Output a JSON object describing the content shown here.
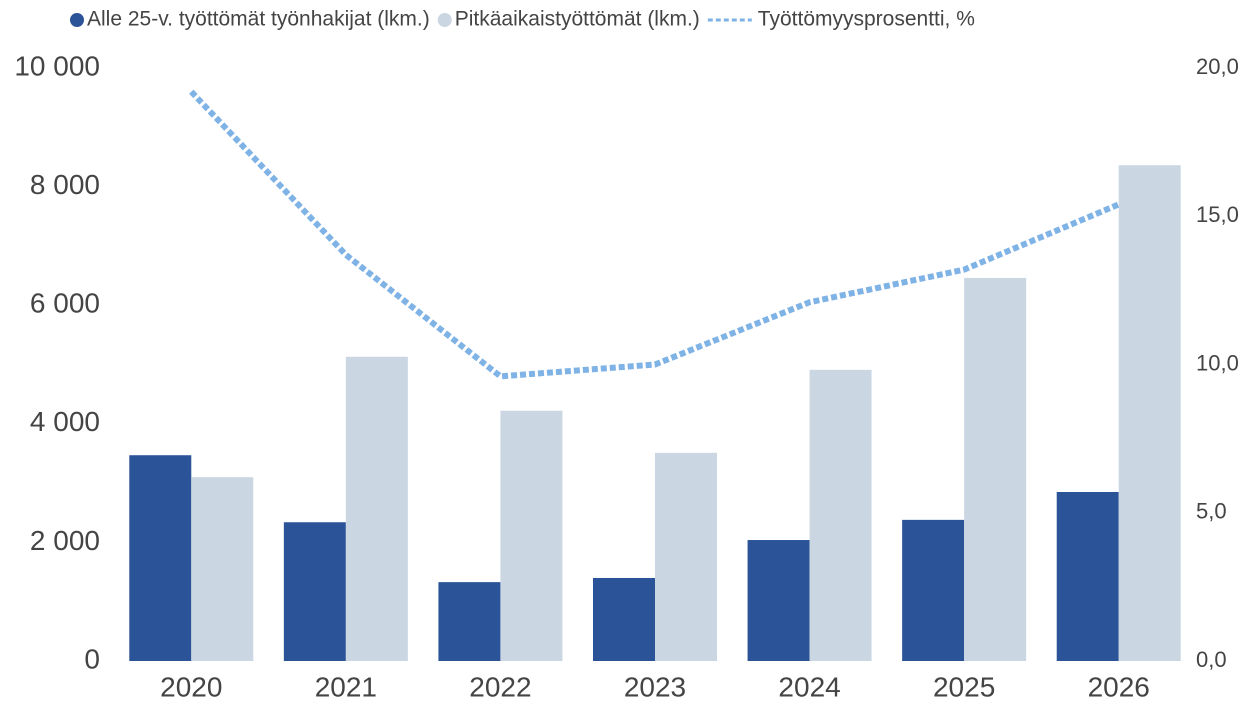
{
  "chart_data": {
    "type": "bar_line",
    "categories": [
      "2020",
      "2021",
      "2022",
      "2023",
      "2024",
      "2025",
      "2026"
    ],
    "series": [
      {
        "name": "Alle 25-v. työttömät työnhakijat (lkm.)",
        "color": "#2b5398",
        "type": "bar",
        "values": [
          3470,
          2340,
          1330,
          1400,
          2040,
          2380,
          2850
        ]
      },
      {
        "name": "Pitkäaikaistyöttömät (lkm.)",
        "color": "#cbd6e3",
        "type": "bar",
        "values": [
          3100,
          5130,
          4220,
          3510,
          4910,
          6460,
          8360
        ]
      },
      {
        "name": "Työttömyysprosentti, %",
        "color": "#7fb3e6",
        "type": "line",
        "axis": "y2",
        "values": [
          19.2,
          13.7,
          9.6,
          10.0,
          12.1,
          13.2,
          15.4
        ]
      }
    ],
    "ylim": [
      0,
      10000
    ],
    "yticks": [
      0,
      {
        "value": 2000,
        "label": "2 000"
      },
      {
        "value": 4000,
        "label": "4 000"
      },
      {
        "value": 6000,
        "label": "6 000"
      },
      {
        "value": 8000,
        "label": "8 000"
      },
      {
        "value": 10000,
        "label": "10 000"
      }
    ],
    "y2lim": [
      0,
      20
    ],
    "y2ticks": [
      {
        "value": 0,
        "label": "0,0"
      },
      {
        "value": 5,
        "label": "5,0"
      },
      {
        "value": 10,
        "label": "10,0"
      },
      {
        "value": 15,
        "label": "15,0"
      },
      {
        "value": 20,
        "label": "20,0"
      }
    ],
    "legend": "top",
    "grid": false
  }
}
